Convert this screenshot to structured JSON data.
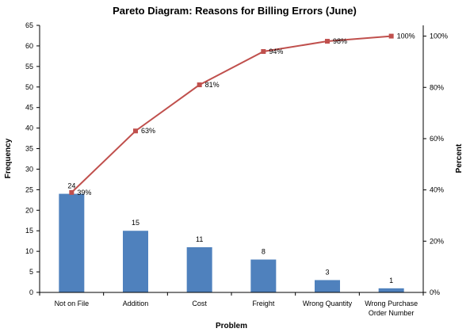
{
  "chart_data": {
    "type": "bar",
    "title": "Pareto Diagram: Reasons for Billing Errors (June)",
    "xlabel": "Problem",
    "ylabel": "Frequency",
    "y2label": "Percent",
    "categories": [
      "Not on File",
      "Addition",
      "Cost",
      "Freight",
      "Wrong Quantity",
      "Wrong Purchase\nOrder Number"
    ],
    "series": [
      {
        "type": "bar",
        "values": [
          24,
          15,
          11,
          8,
          3,
          1
        ]
      },
      {
        "type": "line",
        "axis": "right",
        "values": [
          39,
          63,
          81,
          94,
          98,
          100
        ]
      }
    ],
    "bar_labels": [
      "24",
      "15",
      "11",
      "8",
      "3",
      "1"
    ],
    "line_labels": [
      "39%",
      "63%",
      "81%",
      "94%",
      "98%",
      "100%"
    ],
    "ylim": [
      0,
      65
    ],
    "yticks": [
      0,
      5,
      10,
      15,
      20,
      25,
      30,
      35,
      40,
      45,
      50,
      55,
      60,
      65
    ],
    "y2lim": [
      0,
      100
    ],
    "y2ticks": [
      0,
      20,
      40,
      60,
      80,
      100
    ],
    "y2tick_labels": [
      "0%",
      "20%",
      "40%",
      "60%",
      "80%",
      "100%"
    ],
    "y2_range_percent": [
      0,
      104.2
    ],
    "grid": false,
    "legend": "none",
    "colors": {
      "bar": "#4F81BD",
      "line": "#C0504D"
    }
  }
}
